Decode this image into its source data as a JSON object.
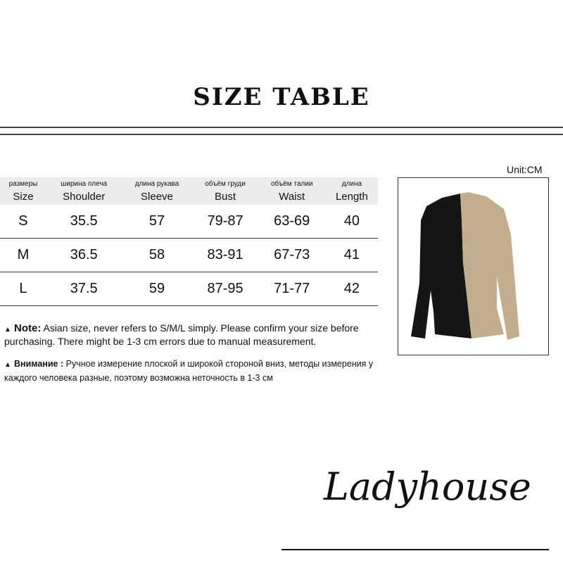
{
  "title": "SIZE TABLE",
  "unit": "Unit:CM",
  "table": {
    "headers": [
      {
        "ru": "размеры",
        "en": "Size"
      },
      {
        "ru": "ширина плеча",
        "en": "Shoulder"
      },
      {
        "ru": "длина рукава",
        "en": "Sleeve"
      },
      {
        "ru": "объём груди",
        "en": "Bust"
      },
      {
        "ru": "объём талии",
        "en": "Waist"
      },
      {
        "ru": "длина",
        "en": "Length"
      }
    ],
    "rows": [
      [
        "S",
        "35.5",
        "57",
        "79-87",
        "63-69",
        "40"
      ],
      [
        "M",
        "36.5",
        "58",
        "83-91",
        "67-73",
        "41"
      ],
      [
        "L",
        "37.5",
        "59",
        "87-95",
        "71-77",
        "42"
      ]
    ]
  },
  "notes": [
    {
      "label": "Note:",
      "text": "Asian size, never refers to S/M/L simply. Please confirm your size before purchasing. There might be 1-3 cm errors due to manual measurement."
    },
    {
      "label": "Внимание :",
      "text": "Ручное измерение плоской и широкой стороной вниз, методы измерения у каждого человека разные, поэтому возможна неточность в 1-3 см"
    }
  ],
  "product": {
    "colors": {
      "left": "#151515",
      "right": "#c2ae8e"
    }
  },
  "logo": "Ladyhouse"
}
